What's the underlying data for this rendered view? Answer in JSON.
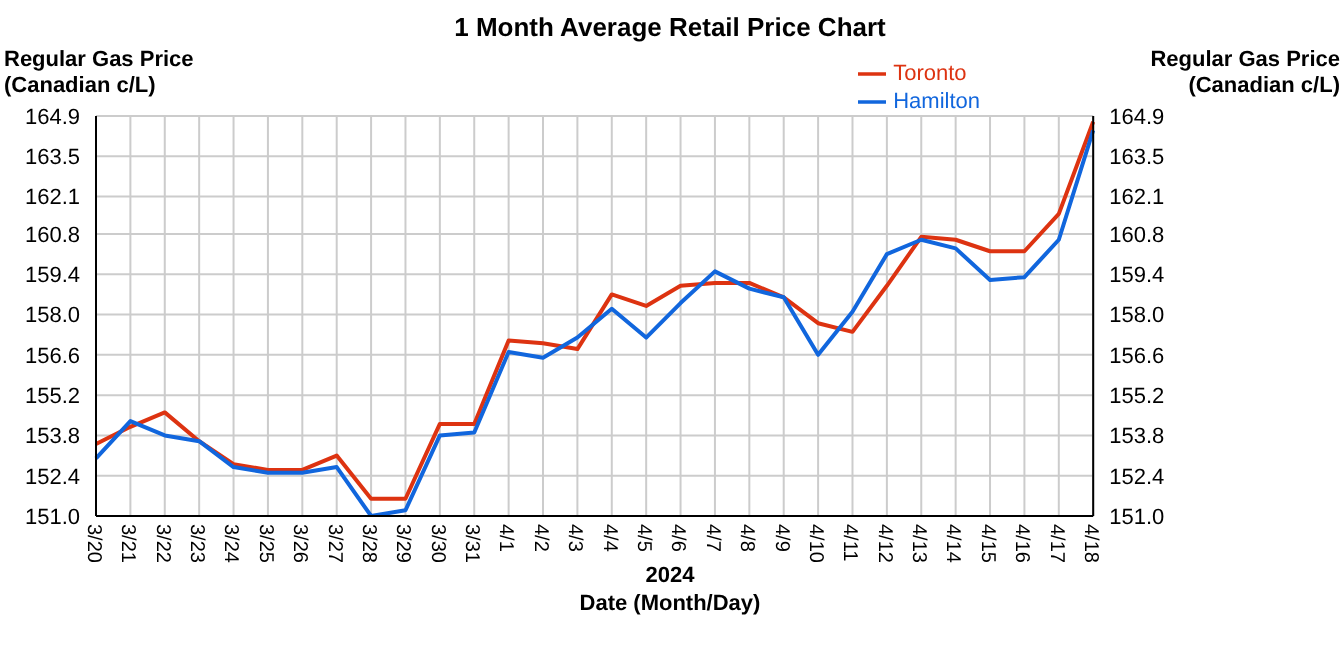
{
  "chart_data": {
    "type": "line",
    "title": "1 Month Average Retail Price Chart",
    "xlabel": "Date (Month/Day)",
    "ylabel": "Regular Gas Price (Canadian c/L)",
    "y2label": "Regular Gas Price (Canadian c/L)",
    "annotations": [
      "2024"
    ],
    "categories": [
      "3/20",
      "3/21",
      "3/22",
      "3/23",
      "3/24",
      "3/25",
      "3/26",
      "3/27",
      "3/28",
      "3/29",
      "3/30",
      "3/31",
      "4/1",
      "4/2",
      "4/3",
      "4/4",
      "4/5",
      "4/6",
      "4/7",
      "4/8",
      "4/9",
      "4/10",
      "4/11",
      "4/12",
      "4/13",
      "4/14",
      "4/15",
      "4/16",
      "4/17",
      "4/18"
    ],
    "series": [
      {
        "name": "Toronto",
        "color": "#dd3311",
        "values": [
          153.5,
          154.1,
          154.6,
          153.6,
          152.8,
          152.6,
          152.6,
          153.1,
          151.6,
          151.6,
          154.2,
          154.2,
          157.1,
          157.0,
          156.8,
          158.7,
          158.3,
          159.0,
          159.1,
          159.1,
          158.6,
          157.7,
          157.4,
          159.0,
          160.7,
          160.6,
          160.2,
          160.2,
          161.5,
          164.7
        ]
      },
      {
        "name": "Hamilton",
        "color": "#1166dd",
        "values": [
          153.0,
          154.3,
          153.8,
          153.6,
          152.7,
          152.5,
          152.5,
          152.7,
          151.0,
          151.2,
          153.8,
          153.9,
          156.7,
          156.5,
          157.2,
          158.2,
          157.2,
          158.4,
          159.5,
          158.9,
          158.6,
          156.6,
          158.1,
          160.1,
          160.6,
          160.3,
          159.2,
          159.3,
          160.6,
          164.4
        ]
      }
    ],
    "ylim": [
      151.0,
      164.9
    ],
    "yticks": [
      {
        "value": 151.0,
        "label": "151.0"
      },
      {
        "value": 152.4,
        "label": "152.4"
      },
      {
        "value": 153.8,
        "label": "153.8"
      },
      {
        "value": 155.2,
        "label": "155.2"
      },
      {
        "value": 156.6,
        "label": "156.6"
      },
      {
        "value": 158.0,
        "label": "158.0"
      },
      {
        "value": 159.4,
        "label": "159.4"
      },
      {
        "value": 160.8,
        "label": "160.8"
      },
      {
        "value": 162.1,
        "label": "162.1"
      },
      {
        "value": 163.5,
        "label": "163.5"
      },
      {
        "value": 164.9,
        "label": "164.9"
      }
    ],
    "y2lim": [
      151.0,
      164.9
    ],
    "y2ticks": [
      {
        "value": 151.0,
        "label": "151.0"
      },
      {
        "value": 152.4,
        "label": "152.4"
      },
      {
        "value": 153.8,
        "label": "153.8"
      },
      {
        "value": 155.2,
        "label": "155.2"
      },
      {
        "value": 156.6,
        "label": "156.6"
      },
      {
        "value": 158.0,
        "label": "158.0"
      },
      {
        "value": 159.4,
        "label": "159.4"
      },
      {
        "value": 160.8,
        "label": "160.8"
      },
      {
        "value": 162.1,
        "label": "162.1"
      },
      {
        "value": 163.5,
        "label": "163.5"
      },
      {
        "value": 164.9,
        "label": "164.9"
      }
    ],
    "grid": true,
    "legend": "top right",
    "marker": "none",
    "line_style": "solid"
  }
}
